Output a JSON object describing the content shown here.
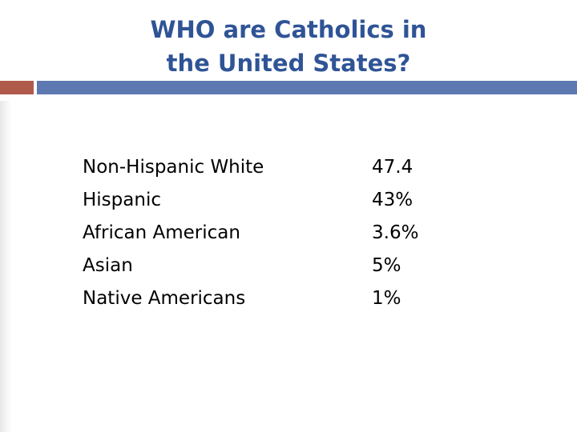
{
  "title": {
    "line1": "WHO are Catholics in",
    "line2": "the United States?"
  },
  "colors": {
    "title": "#2f5496",
    "accent_left": "#b05a4c",
    "accent_right": "#5e79b2",
    "text": "#000000"
  },
  "rows": [
    {
      "label": "Non-Hispanic White",
      "value": "47.4"
    },
    {
      "label": "Hispanic",
      "value": "43%"
    },
    {
      "label": "African American",
      "value": "3.6%"
    },
    {
      "label": "Asian",
      "value": "5%"
    },
    {
      "label": "Native Americans",
      "value": "1%"
    }
  ]
}
